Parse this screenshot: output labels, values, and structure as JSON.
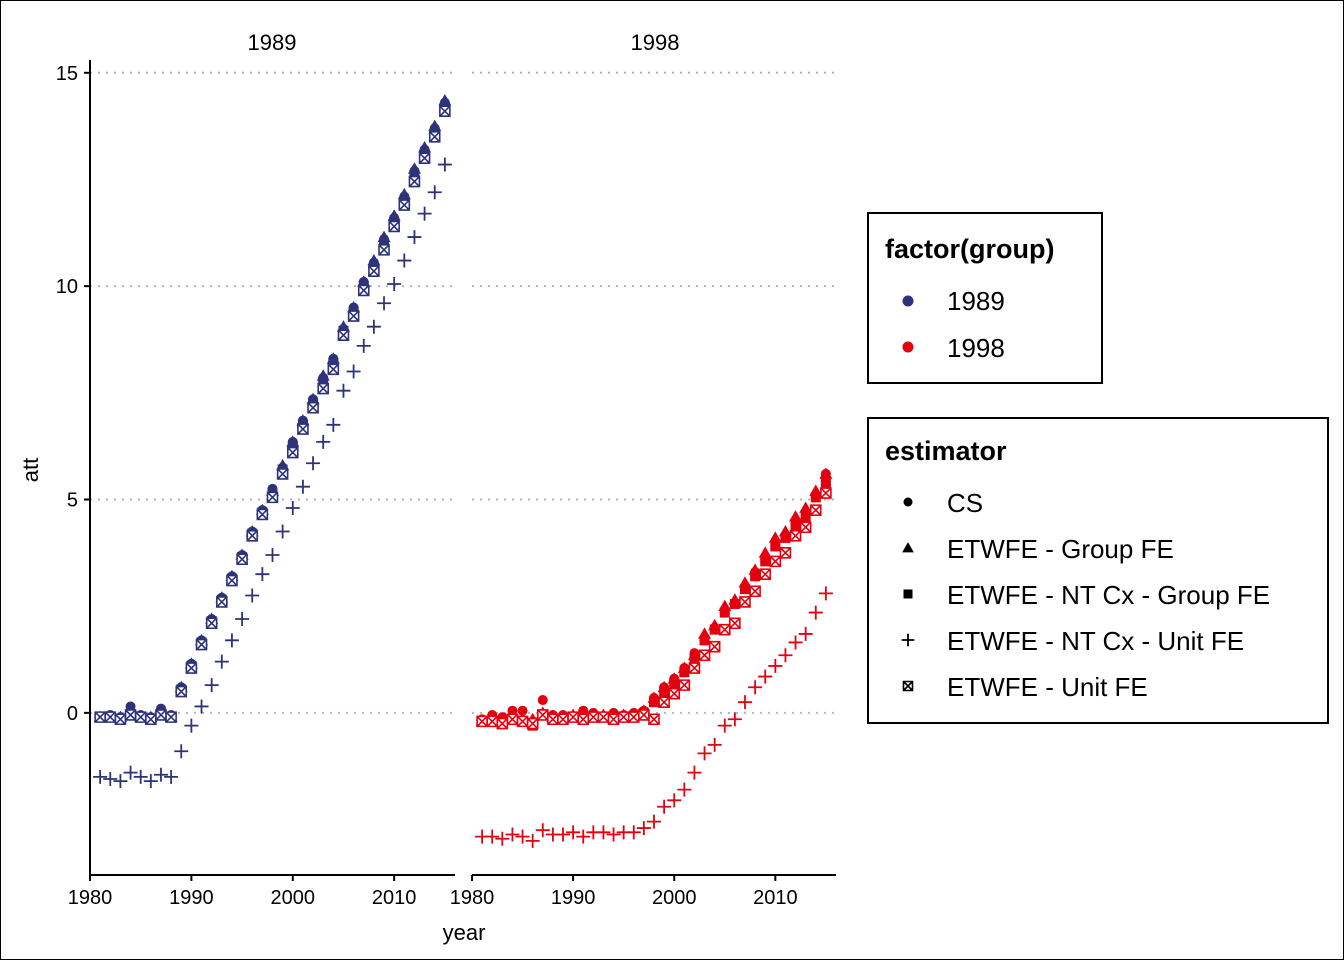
{
  "chart_data": {
    "type": "scatter",
    "xlabel": "year",
    "ylabel": "att",
    "facets": [
      "1989",
      "1998"
    ],
    "xlim": [
      1980,
      2016
    ],
    "ylim": [
      -3.8,
      15.3
    ],
    "xticks": [
      1980,
      1990,
      2000,
      2010
    ],
    "yticks": [
      0,
      5,
      10,
      15
    ],
    "grid": "horizontal-dotted",
    "legend": [
      {
        "title": "factor(group)",
        "items": [
          {
            "label": "1989",
            "color": "#2d327a"
          },
          {
            "label": "1998",
            "color": "#e3000f"
          }
        ]
      },
      {
        "title": "estimator",
        "items": [
          {
            "label": "CS",
            "shape": "circle"
          },
          {
            "label": "ETWFE - Group FE",
            "shape": "triangle"
          },
          {
            "label": "ETWFE - NT Cx - Group FE",
            "shape": "square"
          },
          {
            "label": "ETWFE - NT Cx - Unit FE",
            "shape": "plus"
          },
          {
            "label": "ETWFE - Unit FE",
            "shape": "boxcross"
          }
        ]
      }
    ],
    "legend_position": "right",
    "series": [
      {
        "facet": "1989",
        "group": "1989",
        "x": [
          1981,
          1982,
          1983,
          1984,
          1985,
          1986,
          1987,
          1988,
          1989,
          1990,
          1991,
          1992,
          1993,
          1994,
          1995,
          1996,
          1997,
          1998,
          1999,
          2000,
          2001,
          2002,
          2003,
          2004,
          2005,
          2006,
          2007,
          2008,
          2009,
          2010,
          2011,
          2012,
          2013,
          2014,
          2015
        ],
        "estimators": {
          "CS": [
            -0.1,
            -0.05,
            -0.1,
            0.15,
            -0.05,
            -0.1,
            0.1,
            -0.05,
            0.6,
            1.15,
            1.7,
            2.2,
            2.7,
            3.2,
            3.7,
            4.25,
            4.75,
            5.25,
            5.75,
            6.35,
            6.85,
            7.35,
            7.85,
            8.3,
            9.0,
            9.5,
            10.1,
            10.55,
            11.1,
            11.6,
            12.1,
            12.7,
            13.2,
            13.7,
            14.3
          ],
          "ETWFE - Group FE": [
            -0.1,
            -0.1,
            -0.1,
            -0.05,
            -0.1,
            -0.1,
            -0.05,
            -0.1,
            0.6,
            1.15,
            1.7,
            2.2,
            2.7,
            3.2,
            3.7,
            4.25,
            4.75,
            5.2,
            5.8,
            6.35,
            6.85,
            7.35,
            7.9,
            8.3,
            9.05,
            9.5,
            10.1,
            10.6,
            11.15,
            11.65,
            12.15,
            12.75,
            13.25,
            13.75,
            14.35
          ],
          "ETWFE - NT Cx - Group FE": [
            -0.1,
            -0.1,
            -0.15,
            -0.05,
            -0.1,
            -0.15,
            -0.05,
            -0.1,
            0.55,
            1.1,
            1.65,
            2.15,
            2.65,
            3.15,
            3.65,
            4.2,
            4.7,
            5.15,
            5.7,
            6.25,
            6.75,
            7.25,
            7.75,
            8.2,
            8.95,
            9.4,
            10.0,
            10.45,
            11.0,
            11.5,
            12.0,
            12.6,
            13.1,
            13.6,
            14.2
          ],
          "ETWFE - NT Cx - Unit FE": [
            -1.5,
            -1.55,
            -1.6,
            -1.4,
            -1.5,
            -1.6,
            -1.45,
            -1.5,
            -0.9,
            -0.3,
            0.15,
            0.65,
            1.2,
            1.7,
            2.2,
            2.75,
            3.25,
            3.7,
            4.25,
            4.8,
            5.3,
            5.85,
            6.35,
            6.75,
            7.55,
            8.0,
            8.6,
            9.05,
            9.6,
            10.05,
            10.6,
            11.15,
            11.7,
            12.2,
            12.85
          ],
          "ETWFE - Unit FE": [
            -0.1,
            -0.1,
            -0.15,
            -0.05,
            -0.1,
            -0.15,
            -0.05,
            -0.1,
            0.5,
            1.05,
            1.6,
            2.1,
            2.6,
            3.1,
            3.6,
            4.15,
            4.65,
            5.05,
            5.6,
            6.1,
            6.65,
            7.15,
            7.6,
            8.05,
            8.85,
            9.3,
            9.9,
            10.35,
            10.85,
            11.4,
            11.9,
            12.45,
            13.0,
            13.5,
            14.1
          ]
        }
      },
      {
        "facet": "1998",
        "group": "1998",
        "x": [
          1981,
          1982,
          1983,
          1984,
          1985,
          1986,
          1987,
          1988,
          1989,
          1990,
          1991,
          1992,
          1993,
          1994,
          1995,
          1996,
          1997,
          1998,
          1999,
          2000,
          2001,
          2002,
          2003,
          2004,
          2005,
          2006,
          2007,
          2008,
          2009,
          2010,
          2011,
          2012,
          2013,
          2014,
          2015
        ],
        "estimators": {
          "CS": [
            -0.15,
            -0.05,
            -0.1,
            0.05,
            0.05,
            -0.2,
            0.3,
            -0.05,
            -0.05,
            -0.1,
            0.05,
            0.0,
            -0.1,
            0.0,
            -0.05,
            0.0,
            0.05,
            0.35,
            0.6,
            0.8,
            1.05,
            1.4,
            1.7,
            2.0,
            2.35,
            2.55,
            2.9,
            3.3,
            3.6,
            3.9,
            4.15,
            4.45,
            4.7,
            5.1,
            5.6
          ],
          "ETWFE - Group FE": [
            -0.2,
            -0.15,
            -0.15,
            -0.1,
            -0.15,
            -0.15,
            0.0,
            -0.1,
            -0.1,
            -0.05,
            -0.1,
            -0.05,
            -0.05,
            -0.1,
            -0.05,
            -0.05,
            0.05,
            0.35,
            0.6,
            0.8,
            1.05,
            1.35,
            1.85,
            2.05,
            2.5,
            2.65,
            3.05,
            3.35,
            3.75,
            4.1,
            4.25,
            4.6,
            4.8,
            5.2,
            5.6
          ],
          "ETWFE - NT Cx - Group FE": [
            -0.2,
            -0.2,
            -0.25,
            -0.15,
            -0.2,
            -0.3,
            -0.05,
            -0.15,
            -0.15,
            -0.1,
            -0.15,
            -0.1,
            -0.1,
            -0.15,
            -0.1,
            -0.1,
            0.0,
            0.25,
            0.5,
            0.7,
            0.95,
            1.25,
            1.7,
            1.95,
            2.35,
            2.55,
            2.9,
            3.2,
            3.55,
            3.9,
            4.1,
            4.4,
            4.6,
            5.05,
            5.4
          ],
          "ETWFE - NT Cx - Unit FE": [
            -2.9,
            -2.9,
            -2.95,
            -2.85,
            -2.9,
            -3.0,
            -2.75,
            -2.85,
            -2.85,
            -2.8,
            -2.9,
            -2.8,
            -2.8,
            -2.85,
            -2.8,
            -2.8,
            -2.7,
            -2.55,
            -2.2,
            -2.05,
            -1.8,
            -1.4,
            -0.95,
            -0.75,
            -0.3,
            -0.15,
            0.25,
            0.6,
            0.85,
            1.1,
            1.35,
            1.65,
            1.85,
            2.35,
            2.8
          ],
          "ETWFE - Unit FE": [
            -0.2,
            -0.2,
            -0.25,
            -0.15,
            -0.2,
            -0.25,
            -0.05,
            -0.15,
            -0.15,
            -0.1,
            -0.15,
            -0.1,
            -0.1,
            -0.15,
            -0.1,
            -0.1,
            -0.05,
            -0.15,
            0.25,
            0.45,
            0.65,
            1.05,
            1.35,
            1.55,
            1.95,
            2.1,
            2.6,
            2.85,
            3.25,
            3.55,
            3.75,
            4.15,
            4.35,
            4.75,
            5.15
          ]
        }
      }
    ]
  }
}
